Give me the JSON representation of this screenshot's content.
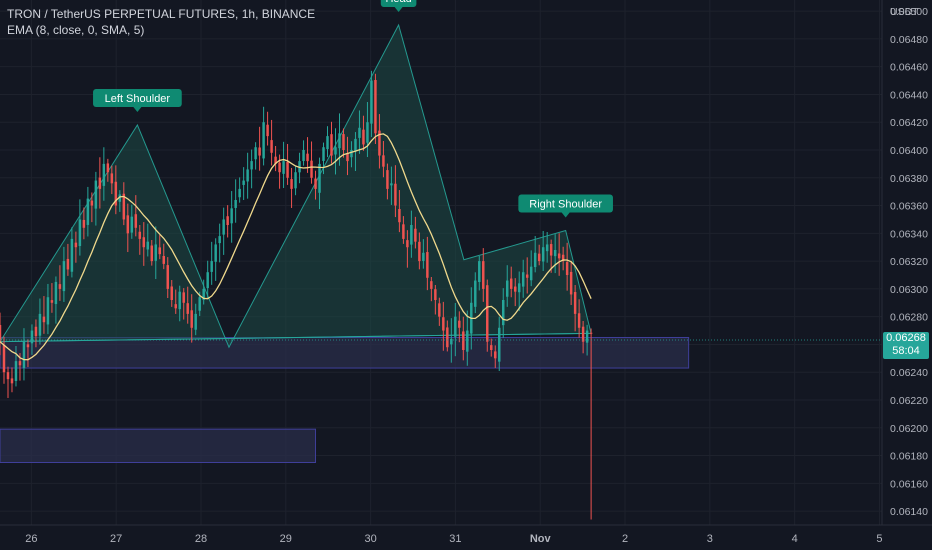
{
  "header": {
    "title": "TRON / TetherUS PERPETUAL FUTURES, 1h, BINANCE",
    "indicator": "EMA (8, close, 0, SMA, 5)"
  },
  "colors": {
    "background": "#131722",
    "up": "#26a69a",
    "down": "#ef5350",
    "ema": "#f0d98c",
    "pattern_fill": "#1e4a46",
    "zone": "#2a2e49"
  },
  "chart_data": {
    "type": "candlestick",
    "currency": "USDT",
    "y_ticks": [
      "0.06140",
      "0.06160",
      "0.06180",
      "0.06200",
      "0.06220",
      "0.06240",
      "0.06260",
      "0.06280",
      "0.06300",
      "0.06320",
      "0.06340",
      "0.06360",
      "0.06380",
      "0.06400",
      "0.06420",
      "0.06440",
      "0.06460",
      "0.06480",
      "0.06500"
    ],
    "ylim": [
      0.0613,
      0.06508
    ],
    "x_ticks": [
      "26",
      "27",
      "28",
      "29",
      "30",
      "31",
      "Nov",
      "2",
      "3",
      "4",
      "5"
    ],
    "x_tick_days": [
      0,
      1,
      2,
      3,
      4,
      5,
      6,
      7,
      8,
      9,
      10
    ],
    "xlim": [
      -0.37,
      10.03
    ],
    "current_price": "0.06268",
    "countdown": "58:04",
    "pattern": {
      "name": "Head and Shoulders",
      "points": [
        {
          "label": "",
          "day": -0.37,
          "price": 0.06262
        },
        {
          "label": "Left Shoulder",
          "day": 1.25,
          "price": 0.06418
        },
        {
          "label": "",
          "day": 2.33,
          "price": 0.06258
        },
        {
          "label": "Head",
          "day": 4.33,
          "price": 0.0649
        },
        {
          "label": "",
          "day": 5.1,
          "price": 0.06321
        },
        {
          "label": "Right Shoulder",
          "day": 6.3,
          "price": 0.06342
        },
        {
          "label": "",
          "day": 6.6,
          "price": 0.06268
        }
      ],
      "neckline": [
        [
          -0.37,
          0.06262
        ],
        [
          6.6,
          0.06268
        ]
      ]
    },
    "zones": [
      {
        "x0": -0.37,
        "x1": 7.75,
        "top": 0.06265,
        "bottom": 0.06243
      },
      {
        "x0": -0.37,
        "x1": 3.35,
        "top": 0.06199,
        "bottom": 0.06175
      }
    ],
    "close_series": [
      0.06262,
      0.0624,
      0.06235,
      0.06232,
      0.06248,
      0.06245,
      0.06262,
      0.06258,
      0.0627,
      0.06266,
      0.06282,
      0.06276,
      0.06294,
      0.0629,
      0.06305,
      0.063,
      0.0632,
      0.06314,
      0.06336,
      0.0633,
      0.0635,
      0.06344,
      0.06365,
      0.0636,
      0.06378,
      0.06372,
      0.0639,
      0.06384,
      0.06376,
      0.0636,
      0.06368,
      0.0635,
      0.0634,
      0.06352,
      0.06344,
      0.06336,
      0.0633,
      0.06334,
      0.0632,
      0.06332,
      0.06325,
      0.06318,
      0.063,
      0.06292,
      0.06286,
      0.06298,
      0.0629,
      0.06282,
      0.06272,
      0.06282,
      0.06294,
      0.063,
      0.06312,
      0.0632,
      0.06332,
      0.06338,
      0.0635,
      0.06346,
      0.06358,
      0.06364,
      0.06372,
      0.06378,
      0.06386,
      0.06392,
      0.06402,
      0.06396,
      0.0642,
      0.0641,
      0.06398,
      0.0639,
      0.06384,
      0.06392,
      0.0638,
      0.06372,
      0.06384,
      0.06392,
      0.064,
      0.06392,
      0.0638,
      0.06372,
      0.0639,
      0.06402,
      0.0641,
      0.06396,
      0.06402,
      0.06412,
      0.064,
      0.06392,
      0.064,
      0.06408,
      0.06416,
      0.06404,
      0.0642,
      0.0645,
      0.06412,
      0.06396,
      0.06388,
      0.06372,
      0.06376,
      0.0636,
      0.06348,
      0.06336,
      0.0633,
      0.06346,
      0.06334,
      0.0632,
      0.06326,
      0.06308,
      0.063,
      0.06292,
      0.0628,
      0.0627,
      0.06258,
      0.06264,
      0.0628,
      0.06272,
      0.06256,
      0.0627,
      0.0629,
      0.06306,
      0.0632,
      0.063,
      0.06262,
      0.06256,
      0.0625,
      0.06272,
      0.06292,
      0.06306,
      0.063,
      0.06298,
      0.06304,
      0.06312,
      0.06308,
      0.06316,
      0.06326,
      0.0632,
      0.0633,
      0.06332,
      0.06324,
      0.06328,
      0.06322,
      0.0632,
      0.0631,
      0.06296,
      0.06282,
      0.06272,
      0.06262,
      0.0627,
      0.06268
    ],
    "last_candle_low": 0.06134
  }
}
